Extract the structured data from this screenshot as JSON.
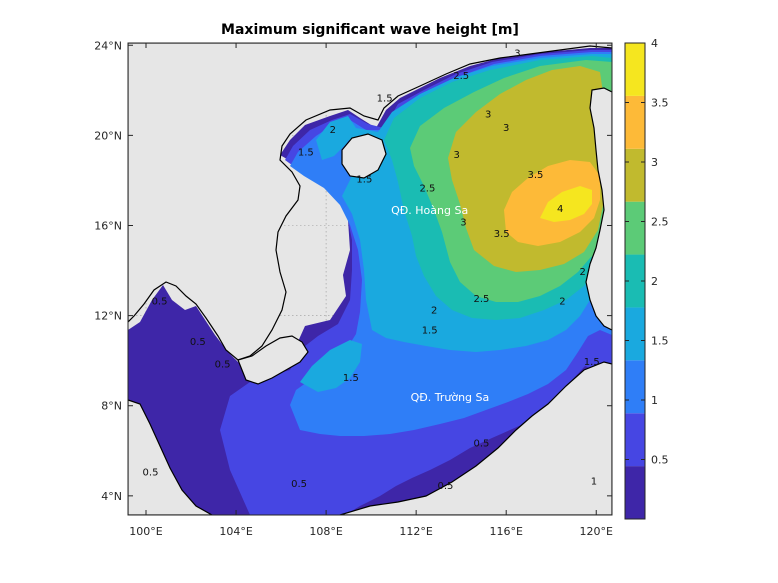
{
  "title": "Maximum significant wave height [m]",
  "map": {
    "lon_range": [
      99.2,
      120.7
    ],
    "lat_range": [
      3.15,
      24.1
    ],
    "lon_ticks": [
      100,
      104,
      108,
      112,
      116,
      120
    ],
    "lon_tick_labels": [
      "100°E",
      "104°E",
      "108°E",
      "112°E",
      "116°E",
      "120°E"
    ],
    "lat_ticks": [
      4,
      8,
      12,
      16,
      20,
      24
    ],
    "lat_tick_labels": [
      "4°N",
      "8°N",
      "12°N",
      "16°N",
      "20°N",
      "24°N"
    ],
    "grid": true,
    "land_color": "#e6e6e6"
  },
  "colorbar": {
    "range": [
      0,
      4
    ],
    "ticks": [
      0.5,
      1,
      1.5,
      2,
      2.5,
      3,
      3.5,
      4
    ],
    "tick_labels": [
      "0.5",
      "1",
      "1.5",
      "2",
      "2.5",
      "3",
      "3.5",
      "4"
    ],
    "colors": [
      "#3e26a8",
      "#4646e3",
      "#2f7ef7",
      "#1aa9df",
      "#1abcb3",
      "#5ccb77",
      "#c1ba2e",
      "#fdba38",
      "#f5e61f"
    ],
    "placement": "right"
  },
  "places": [
    {
      "name": "QĐ. Hoàng Sa",
      "lon": 112.6,
      "lat": 16.5
    },
    {
      "name": "QĐ. Trường Sa",
      "lon": 113.5,
      "lat": 8.2
    }
  ],
  "contour_labels": [
    {
      "text": "2",
      "lon": 108.3,
      "lat": 20.1
    },
    {
      "text": "1.5",
      "lon": 107.1,
      "lat": 19.1
    },
    {
      "text": "1.5",
      "lon": 110.6,
      "lat": 21.5
    },
    {
      "text": "2.5",
      "lon": 114.0,
      "lat": 22.5
    },
    {
      "text": "3",
      "lon": 116.5,
      "lat": 23.5
    },
    {
      "text": "3",
      "lon": 115.2,
      "lat": 20.8
    },
    {
      "text": "3",
      "lon": 116.0,
      "lat": 20.2
    },
    {
      "text": "3",
      "lon": 113.8,
      "lat": 19.0
    },
    {
      "text": "3.5",
      "lon": 117.3,
      "lat": 18.1
    },
    {
      "text": "4",
      "lon": 118.4,
      "lat": 16.6
    },
    {
      "text": "3.5",
      "lon": 115.8,
      "lat": 15.5
    },
    {
      "text": "3",
      "lon": 114.1,
      "lat": 16.0
    },
    {
      "text": "2.5",
      "lon": 112.5,
      "lat": 17.5
    },
    {
      "text": "1.5",
      "lon": 109.7,
      "lat": 17.9
    },
    {
      "text": "2.5",
      "lon": 114.9,
      "lat": 12.6
    },
    {
      "text": "2",
      "lon": 112.8,
      "lat": 12.1
    },
    {
      "text": "2",
      "lon": 118.5,
      "lat": 12.5
    },
    {
      "text": "2",
      "lon": 119.4,
      "lat": 13.8
    },
    {
      "text": "1.5",
      "lon": 112.6,
      "lat": 11.2
    },
    {
      "text": "1.5",
      "lon": 109.1,
      "lat": 9.1
    },
    {
      "text": "1.5",
      "lon": 119.8,
      "lat": 9.8
    },
    {
      "text": "1",
      "lon": 119.9,
      "lat": 4.5
    },
    {
      "text": "0.5",
      "lon": 114.9,
      "lat": 6.2
    },
    {
      "text": "0.5",
      "lon": 100.6,
      "lat": 12.5
    },
    {
      "text": "0.5",
      "lon": 102.3,
      "lat": 10.7
    },
    {
      "text": "0.5",
      "lon": 103.4,
      "lat": 9.7
    },
    {
      "text": "0.5",
      "lon": 100.2,
      "lat": 4.9
    },
    {
      "text": "0.5",
      "lon": 106.8,
      "lat": 4.4
    },
    {
      "text": "0.5",
      "lon": 113.3,
      "lat": 4.3
    }
  ]
}
